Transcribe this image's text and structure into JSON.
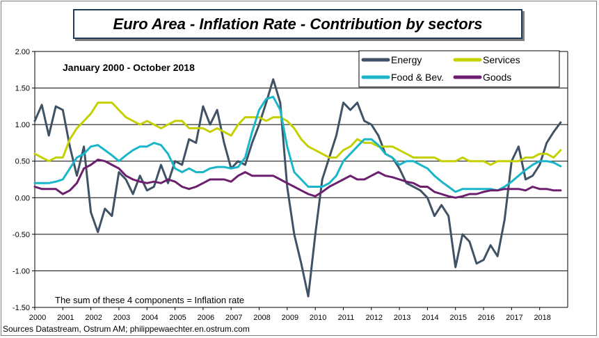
{
  "chart_data": {
    "type": "line",
    "title": "Euro Area - Inflation Rate - Contribution by sectors",
    "subtitle": "January 2000 - October 2018",
    "annotation": "The sum of these 4 components = Inflation rate",
    "source": "Sources Datastream, Ostrum AM; philippewaechter.en.ostrum.com",
    "xlabel": "",
    "ylabel": "",
    "xlim": [
      2000,
      2019
    ],
    "ylim": [
      -1.5,
      2.0
    ],
    "yticks": [
      2.0,
      1.5,
      1.0,
      0.5,
      0.0,
      -0.5,
      -1.0,
      -1.5
    ],
    "ytick_labels": [
      "2.00",
      "1.50",
      "1.00",
      "0.50",
      "0.00",
      "-0.50",
      "-1.00",
      "-1.50"
    ],
    "xticks": [
      2000,
      2001,
      2002,
      2003,
      2004,
      2005,
      2006,
      2007,
      2008,
      2009,
      2010,
      2011,
      2012,
      2013,
      2014,
      2015,
      2016,
      2017,
      2018
    ],
    "xtick_labels": [
      "2000",
      "2001",
      "2002",
      "2003",
      "2004",
      "2005",
      "2006",
      "2007",
      "2008",
      "2009",
      "2010",
      "2011",
      "2012",
      "2013",
      "2014",
      "2015",
      "2016",
      "2017",
      "2018"
    ],
    "grid": "horizontal",
    "legend_position": "top-right",
    "series": [
      {
        "name": "Energy",
        "color": "#3f5266",
        "x": [
          2000.0,
          2000.25,
          2000.5,
          2000.75,
          2001.0,
          2001.25,
          2001.5,
          2001.75,
          2002.0,
          2002.25,
          2002.5,
          2002.75,
          2003.0,
          2003.25,
          2003.5,
          2003.75,
          2004.0,
          2004.25,
          2004.5,
          2004.75,
          2005.0,
          2005.25,
          2005.5,
          2005.75,
          2006.0,
          2006.25,
          2006.5,
          2006.75,
          2007.0,
          2007.25,
          2007.5,
          2007.75,
          2008.0,
          2008.25,
          2008.5,
          2008.75,
          2009.0,
          2009.25,
          2009.5,
          2009.75,
          2010.0,
          2010.25,
          2010.5,
          2010.75,
          2011.0,
          2011.25,
          2011.5,
          2011.75,
          2012.0,
          2012.25,
          2012.5,
          2012.75,
          2013.0,
          2013.25,
          2013.5,
          2013.75,
          2014.0,
          2014.25,
          2014.5,
          2014.75,
          2015.0,
          2015.25,
          2015.5,
          2015.75,
          2016.0,
          2016.25,
          2016.5,
          2016.75,
          2017.0,
          2017.25,
          2017.5,
          2017.75,
          2018.0,
          2018.25,
          2018.5,
          2018.75
        ],
        "values": [
          1.05,
          1.27,
          0.85,
          1.25,
          1.2,
          0.7,
          0.3,
          0.7,
          -0.2,
          -0.47,
          -0.15,
          -0.25,
          0.35,
          0.25,
          0.05,
          0.3,
          0.1,
          0.15,
          0.45,
          0.2,
          0.5,
          0.45,
          0.8,
          0.75,
          1.25,
          1.0,
          1.2,
          0.75,
          0.4,
          0.5,
          0.45,
          0.75,
          1.0,
          1.3,
          1.62,
          1.3,
          0.15,
          -0.5,
          -0.9,
          -1.35,
          -0.5,
          0.25,
          0.55,
          0.85,
          1.3,
          1.2,
          1.3,
          1.05,
          1.0,
          0.85,
          0.6,
          0.55,
          0.4,
          0.2,
          0.15,
          0.1,
          0.0,
          -0.25,
          -0.1,
          -0.25,
          -0.95,
          -0.5,
          -0.6,
          -0.9,
          -0.85,
          -0.65,
          -0.8,
          -0.3,
          0.5,
          0.7,
          0.25,
          0.3,
          0.45,
          0.75,
          0.9,
          1.03
        ]
      },
      {
        "name": "Services",
        "color": "#c5d000",
        "x": [
          2000.0,
          2000.25,
          2000.5,
          2000.75,
          2001.0,
          2001.25,
          2001.5,
          2001.75,
          2002.0,
          2002.25,
          2002.5,
          2002.75,
          2003.0,
          2003.25,
          2003.5,
          2003.75,
          2004.0,
          2004.25,
          2004.5,
          2004.75,
          2005.0,
          2005.25,
          2005.5,
          2005.75,
          2006.0,
          2006.25,
          2006.5,
          2006.75,
          2007.0,
          2007.25,
          2007.5,
          2007.75,
          2008.0,
          2008.25,
          2008.5,
          2008.75,
          2009.0,
          2009.25,
          2009.5,
          2009.75,
          2010.0,
          2010.25,
          2010.5,
          2010.75,
          2011.0,
          2011.25,
          2011.5,
          2011.75,
          2012.0,
          2012.25,
          2012.5,
          2012.75,
          2013.0,
          2013.25,
          2013.5,
          2013.75,
          2014.0,
          2014.25,
          2014.5,
          2014.75,
          2015.0,
          2015.25,
          2015.5,
          2015.75,
          2016.0,
          2016.25,
          2016.5,
          2016.75,
          2017.0,
          2017.25,
          2017.5,
          2017.75,
          2018.0,
          2018.25,
          2018.5,
          2018.75
        ],
        "values": [
          0.6,
          0.55,
          0.5,
          0.55,
          0.55,
          0.8,
          0.95,
          1.05,
          1.15,
          1.3,
          1.3,
          1.3,
          1.2,
          1.1,
          1.05,
          1.0,
          1.05,
          1.0,
          0.95,
          1.0,
          1.05,
          1.05,
          0.95,
          0.95,
          0.95,
          0.9,
          0.95,
          0.9,
          0.85,
          1.0,
          1.1,
          1.1,
          1.1,
          1.05,
          1.1,
          1.1,
          1.05,
          0.95,
          0.8,
          0.7,
          0.65,
          0.6,
          0.55,
          0.55,
          0.65,
          0.7,
          0.8,
          0.75,
          0.75,
          0.7,
          0.7,
          0.7,
          0.65,
          0.6,
          0.55,
          0.55,
          0.55,
          0.55,
          0.5,
          0.5,
          0.5,
          0.55,
          0.5,
          0.5,
          0.5,
          0.45,
          0.5,
          0.5,
          0.5,
          0.5,
          0.55,
          0.55,
          0.6,
          0.6,
          0.55,
          0.65
        ]
      },
      {
        "name": "Food & Bev.",
        "color": "#19b6c9",
        "x": [
          2000.0,
          2000.25,
          2000.5,
          2000.75,
          2001.0,
          2001.25,
          2001.5,
          2001.75,
          2002.0,
          2002.25,
          2002.5,
          2002.75,
          2003.0,
          2003.25,
          2003.5,
          2003.75,
          2004.0,
          2004.25,
          2004.5,
          2004.75,
          2005.0,
          2005.25,
          2005.5,
          2005.75,
          2006.0,
          2006.25,
          2006.5,
          2006.75,
          2007.0,
          2007.25,
          2007.5,
          2007.75,
          2008.0,
          2008.25,
          2008.5,
          2008.75,
          2009.0,
          2009.25,
          2009.5,
          2009.75,
          2010.0,
          2010.25,
          2010.5,
          2010.75,
          2011.0,
          2011.25,
          2011.5,
          2011.75,
          2012.0,
          2012.25,
          2012.5,
          2012.75,
          2013.0,
          2013.25,
          2013.5,
          2013.75,
          2014.0,
          2014.25,
          2014.5,
          2014.75,
          2015.0,
          2015.25,
          2015.5,
          2015.75,
          2016.0,
          2016.25,
          2016.5,
          2016.75,
          2017.0,
          2017.25,
          2017.5,
          2017.75,
          2018.0,
          2018.25,
          2018.5,
          2018.75
        ],
        "values": [
          0.2,
          0.2,
          0.2,
          0.22,
          0.25,
          0.4,
          0.55,
          0.6,
          0.7,
          0.72,
          0.65,
          0.58,
          0.5,
          0.58,
          0.65,
          0.7,
          0.7,
          0.75,
          0.72,
          0.6,
          0.4,
          0.35,
          0.4,
          0.35,
          0.35,
          0.4,
          0.42,
          0.42,
          0.4,
          0.42,
          0.55,
          0.9,
          1.2,
          1.35,
          1.38,
          1.2,
          0.7,
          0.35,
          0.25,
          0.15,
          0.15,
          0.15,
          0.2,
          0.3,
          0.5,
          0.6,
          0.7,
          0.8,
          0.8,
          0.72,
          0.6,
          0.55,
          0.45,
          0.5,
          0.5,
          0.45,
          0.4,
          0.3,
          0.22,
          0.15,
          0.08,
          0.12,
          0.12,
          0.12,
          0.12,
          0.12,
          0.1,
          0.15,
          0.22,
          0.3,
          0.38,
          0.45,
          0.5,
          0.5,
          0.48,
          0.43
        ]
      },
      {
        "name": "Goods",
        "color": "#6b1f6e",
        "x": [
          2000.0,
          2000.25,
          2000.5,
          2000.75,
          2001.0,
          2001.25,
          2001.5,
          2001.75,
          2002.0,
          2002.25,
          2002.5,
          2002.75,
          2003.0,
          2003.25,
          2003.5,
          2003.75,
          2004.0,
          2004.25,
          2004.5,
          2004.75,
          2005.0,
          2005.25,
          2005.5,
          2005.75,
          2006.0,
          2006.25,
          2006.5,
          2006.75,
          2007.0,
          2007.25,
          2007.5,
          2007.75,
          2008.0,
          2008.25,
          2008.5,
          2008.75,
          2009.0,
          2009.25,
          2009.5,
          2009.75,
          2010.0,
          2010.25,
          2010.5,
          2010.75,
          2011.0,
          2011.25,
          2011.5,
          2011.75,
          2012.0,
          2012.25,
          2012.5,
          2012.75,
          2013.0,
          2013.25,
          2013.5,
          2013.75,
          2014.0,
          2014.25,
          2014.5,
          2014.75,
          2015.0,
          2015.25,
          2015.5,
          2015.75,
          2016.0,
          2016.25,
          2016.5,
          2016.75,
          2017.0,
          2017.25,
          2017.5,
          2017.75,
          2018.0,
          2018.25,
          2018.5,
          2018.75
        ],
        "values": [
          0.15,
          0.12,
          0.12,
          0.12,
          0.05,
          0.1,
          0.2,
          0.4,
          0.45,
          0.52,
          0.5,
          0.45,
          0.4,
          0.3,
          0.25,
          0.22,
          0.2,
          0.22,
          0.2,
          0.25,
          0.22,
          0.15,
          0.12,
          0.15,
          0.2,
          0.25,
          0.25,
          0.25,
          0.22,
          0.3,
          0.35,
          0.3,
          0.3,
          0.3,
          0.3,
          0.25,
          0.2,
          0.15,
          0.1,
          0.05,
          0.02,
          0.08,
          0.15,
          0.2,
          0.25,
          0.3,
          0.25,
          0.25,
          0.3,
          0.35,
          0.3,
          0.28,
          0.25,
          0.22,
          0.2,
          0.15,
          0.15,
          0.08,
          0.05,
          0.02,
          0.0,
          0.02,
          0.05,
          0.05,
          0.08,
          0.1,
          0.1,
          0.12,
          0.12,
          0.12,
          0.1,
          0.15,
          0.12,
          0.12,
          0.1,
          0.1
        ]
      }
    ]
  }
}
